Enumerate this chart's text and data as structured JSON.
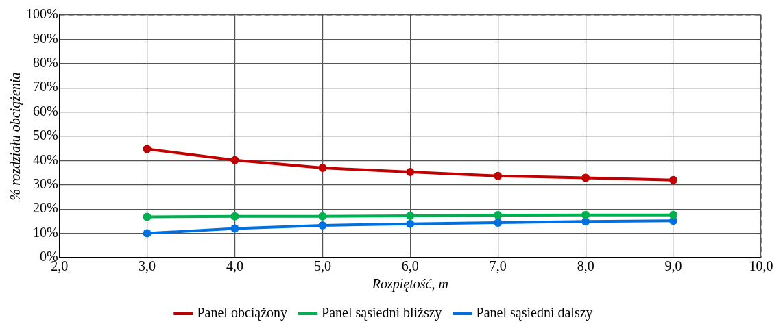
{
  "chart_data": {
    "type": "line",
    "xlabel": "Rozpiętość, m",
    "ylabel": "% rozdziału obciążenia",
    "xlim": [
      2,
      10
    ],
    "xticks": [
      {
        "value": 2,
        "label": "2,0"
      },
      {
        "value": 3,
        "label": "3,0"
      },
      {
        "value": 4,
        "label": "4,0"
      },
      {
        "value": 5,
        "label": "5,0"
      },
      {
        "value": 6,
        "label": "6,0"
      },
      {
        "value": 7,
        "label": "7,0"
      },
      {
        "value": 8,
        "label": "8,0"
      },
      {
        "value": 9,
        "label": "9,0"
      },
      {
        "value": 10,
        "label": "10,0"
      }
    ],
    "ylim": [
      0,
      100
    ],
    "yticks": [
      {
        "value": 0,
        "label": "0%"
      },
      {
        "value": 10,
        "label": "10%"
      },
      {
        "value": 20,
        "label": "20%"
      },
      {
        "value": 30,
        "label": "30%"
      },
      {
        "value": 40,
        "label": "40%"
      },
      {
        "value": 50,
        "label": "50%"
      },
      {
        "value": 60,
        "label": "60%"
      },
      {
        "value": 70,
        "label": "70%"
      },
      {
        "value": 80,
        "label": "80%"
      },
      {
        "value": 90,
        "label": "90%"
      },
      {
        "value": 100,
        "label": "100%"
      }
    ],
    "x": [
      3,
      4,
      5,
      6,
      7,
      8,
      9
    ],
    "series": [
      {
        "name": "Panel obciążony",
        "color": "#c00000",
        "values": [
          44.8,
          40.2,
          37,
          35.3,
          33.7,
          32.9,
          32
        ]
      },
      {
        "name": "Panel sąsiedni bliższy",
        "color": "#00b050",
        "values": [
          16.8,
          17,
          17,
          17.2,
          17.5,
          17.6,
          17.6
        ]
      },
      {
        "name": "Panel sąsiedni dalszy",
        "color": "#0070e0",
        "values": [
          10,
          12,
          13.3,
          13.9,
          14.4,
          14.9,
          15.2
        ]
      }
    ],
    "grid": true,
    "legend": "bottom",
    "marker": "circle",
    "line_style": "solid"
  }
}
